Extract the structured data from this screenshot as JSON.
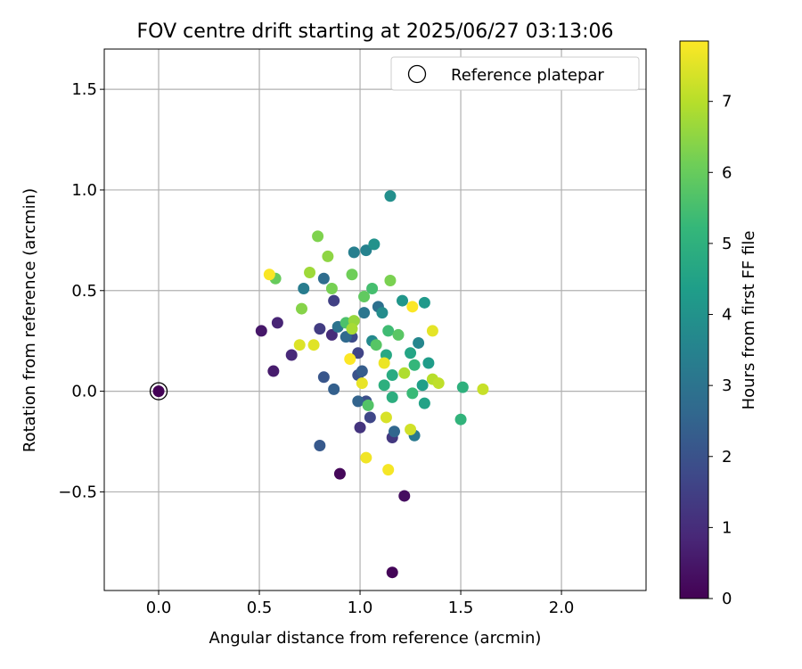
{
  "chart_data": {
    "type": "scatter",
    "title": "FOV centre drift starting at 2025/06/27 03:13:06",
    "xlabel": "Angular distance from reference (arcmin)",
    "ylabel": "Rotation from reference (arcmin)",
    "xlim": [
      -0.27,
      2.42
    ],
    "ylim": [
      -0.99,
      1.7
    ],
    "xticks": [
      0.0,
      0.5,
      1.0,
      1.5,
      2.0
    ],
    "xtick_labels": [
      "0.0",
      "0.5",
      "1.0",
      "1.5",
      "2.0"
    ],
    "yticks": [
      -0.5,
      0.0,
      0.5,
      1.0,
      1.5
    ],
    "ytick_labels": [
      "−0.5",
      "0.0",
      "0.5",
      "1.0",
      "1.5"
    ],
    "grid": true,
    "legend": {
      "placement": "top-right",
      "entries": [
        "Reference platepar"
      ]
    },
    "reference_point": {
      "name": "Reference platepar",
      "x": 0.0,
      "y": 0.0
    },
    "colorbar": {
      "label": "Hours from first FF file",
      "min": 0,
      "max": 7.85,
      "ticks": [
        0,
        1,
        2,
        3,
        4,
        5,
        6,
        7
      ],
      "tick_labels": [
        "0",
        "1",
        "2",
        "3",
        "4",
        "5",
        "6",
        "7"
      ],
      "colormap": "viridis",
      "stops": [
        "#440154",
        "#482878",
        "#3e4989",
        "#31688e",
        "#26828e",
        "#1f9e89",
        "#35b779",
        "#6ece58",
        "#b5de2b",
        "#fde725"
      ]
    },
    "points": [
      {
        "x": 0.0,
        "y": 0.0,
        "h": 0.05
      },
      {
        "x": 1.16,
        "y": -0.9,
        "h": 0.1
      },
      {
        "x": 0.9,
        "y": -0.41,
        "h": 0.15
      },
      {
        "x": 1.22,
        "y": -0.52,
        "h": 0.3
      },
      {
        "x": 0.51,
        "y": 0.3,
        "h": 0.5
      },
      {
        "x": 0.57,
        "y": 0.1,
        "h": 0.6
      },
      {
        "x": 0.59,
        "y": 0.34,
        "h": 0.8
      },
      {
        "x": 0.66,
        "y": 0.18,
        "h": 0.9
      },
      {
        "x": 0.86,
        "y": 0.28,
        "h": 1.0
      },
      {
        "x": 1.0,
        "y": -0.18,
        "h": 1.2
      },
      {
        "x": 1.16,
        "y": -0.23,
        "h": 1.3
      },
      {
        "x": 0.8,
        "y": 0.31,
        "h": 1.4
      },
      {
        "x": 0.87,
        "y": 0.45,
        "h": 1.5
      },
      {
        "x": 0.99,
        "y": 0.19,
        "h": 1.6
      },
      {
        "x": 1.05,
        "y": -0.13,
        "h": 1.7
      },
      {
        "x": 0.96,
        "y": 0.27,
        "h": 1.8
      },
      {
        "x": 1.03,
        "y": -0.05,
        "h": 1.9
      },
      {
        "x": 0.99,
        "y": 0.08,
        "h": 2.0
      },
      {
        "x": 0.82,
        "y": 0.07,
        "h": 2.1
      },
      {
        "x": 0.8,
        "y": -0.27,
        "h": 2.2
      },
      {
        "x": 1.01,
        "y": 0.1,
        "h": 2.3
      },
      {
        "x": 0.87,
        "y": 0.01,
        "h": 2.4
      },
      {
        "x": 0.99,
        "y": -0.05,
        "h": 2.5
      },
      {
        "x": 1.17,
        "y": -0.2,
        "h": 2.6
      },
      {
        "x": 0.93,
        "y": 0.27,
        "h": 2.7
      },
      {
        "x": 0.82,
        "y": 0.56,
        "h": 2.8
      },
      {
        "x": 1.09,
        "y": 0.42,
        "h": 2.9
      },
      {
        "x": 0.89,
        "y": 0.32,
        "h": 3.0
      },
      {
        "x": 1.02,
        "y": 0.39,
        "h": 3.1
      },
      {
        "x": 1.27,
        "y": -0.22,
        "h": 3.2
      },
      {
        "x": 0.72,
        "y": 0.51,
        "h": 3.3
      },
      {
        "x": 0.97,
        "y": 0.69,
        "h": 3.4
      },
      {
        "x": 1.03,
        "y": 0.7,
        "h": 3.5
      },
      {
        "x": 1.29,
        "y": 0.24,
        "h": 3.6
      },
      {
        "x": 1.06,
        "y": 0.25,
        "h": 3.7
      },
      {
        "x": 1.11,
        "y": 0.39,
        "h": 3.8
      },
      {
        "x": 1.15,
        "y": 0.97,
        "h": 3.9
      },
      {
        "x": 1.07,
        "y": 0.73,
        "h": 4.0
      },
      {
        "x": 1.21,
        "y": 0.45,
        "h": 4.1
      },
      {
        "x": 1.32,
        "y": 0.44,
        "h": 4.2
      },
      {
        "x": 1.34,
        "y": 0.14,
        "h": 4.3
      },
      {
        "x": 1.31,
        "y": 0.03,
        "h": 4.4
      },
      {
        "x": 1.32,
        "y": -0.06,
        "h": 4.5
      },
      {
        "x": 1.25,
        "y": 0.19,
        "h": 4.6
      },
      {
        "x": 1.13,
        "y": 0.18,
        "h": 4.7
      },
      {
        "x": 1.16,
        "y": 0.08,
        "h": 4.8
      },
      {
        "x": 1.16,
        "y": -0.03,
        "h": 4.9
      },
      {
        "x": 1.12,
        "y": 0.03,
        "h": 4.95
      },
      {
        "x": 1.51,
        "y": 0.02,
        "h": 5.0
      },
      {
        "x": 1.5,
        "y": -0.14,
        "h": 5.1
      },
      {
        "x": 1.27,
        "y": 0.13,
        "h": 5.2
      },
      {
        "x": 1.26,
        "y": -0.01,
        "h": 5.3
      },
      {
        "x": 1.14,
        "y": 0.3,
        "h": 5.4
      },
      {
        "x": 1.06,
        "y": 0.51,
        "h": 5.5
      },
      {
        "x": 0.93,
        "y": 0.34,
        "h": 5.6
      },
      {
        "x": 1.04,
        "y": -0.07,
        "h": 5.7
      },
      {
        "x": 1.08,
        "y": 0.23,
        "h": 5.75
      },
      {
        "x": 1.19,
        "y": 0.28,
        "h": 5.8
      },
      {
        "x": 1.02,
        "y": 0.47,
        "h": 5.9
      },
      {
        "x": 0.58,
        "y": 0.56,
        "h": 6.0
      },
      {
        "x": 0.96,
        "y": 0.58,
        "h": 6.1
      },
      {
        "x": 0.86,
        "y": 0.51,
        "h": 6.2
      },
      {
        "x": 1.15,
        "y": 0.55,
        "h": 6.25
      },
      {
        "x": 0.79,
        "y": 0.77,
        "h": 6.3
      },
      {
        "x": 0.71,
        "y": 0.41,
        "h": 6.4
      },
      {
        "x": 0.84,
        "y": 0.67,
        "h": 6.5
      },
      {
        "x": 0.97,
        "y": 0.35,
        "h": 6.6
      },
      {
        "x": 0.75,
        "y": 0.59,
        "h": 6.7
      },
      {
        "x": 0.96,
        "y": 0.31,
        "h": 6.8
      },
      {
        "x": 1.22,
        "y": 0.09,
        "h": 6.9
      },
      {
        "x": 1.36,
        "y": 0.06,
        "h": 7.0
      },
      {
        "x": 1.39,
        "y": 0.04,
        "h": 7.1
      },
      {
        "x": 1.61,
        "y": 0.01,
        "h": 7.2
      },
      {
        "x": 1.25,
        "y": -0.19,
        "h": 7.3
      },
      {
        "x": 1.13,
        "y": -0.13,
        "h": 7.4
      },
      {
        "x": 0.7,
        "y": 0.23,
        "h": 7.45
      },
      {
        "x": 0.77,
        "y": 0.23,
        "h": 7.5
      },
      {
        "x": 1.36,
        "y": 0.3,
        "h": 7.55
      },
      {
        "x": 1.01,
        "y": 0.04,
        "h": 7.6
      },
      {
        "x": 1.12,
        "y": 0.14,
        "h": 7.65
      },
      {
        "x": 1.03,
        "y": -0.33,
        "h": 7.7
      },
      {
        "x": 1.14,
        "y": -0.39,
        "h": 7.75
      },
      {
        "x": 0.55,
        "y": 0.58,
        "h": 7.8
      },
      {
        "x": 1.26,
        "y": 0.42,
        "h": 7.82
      },
      {
        "x": 0.95,
        "y": 0.16,
        "h": 7.84
      }
    ]
  }
}
